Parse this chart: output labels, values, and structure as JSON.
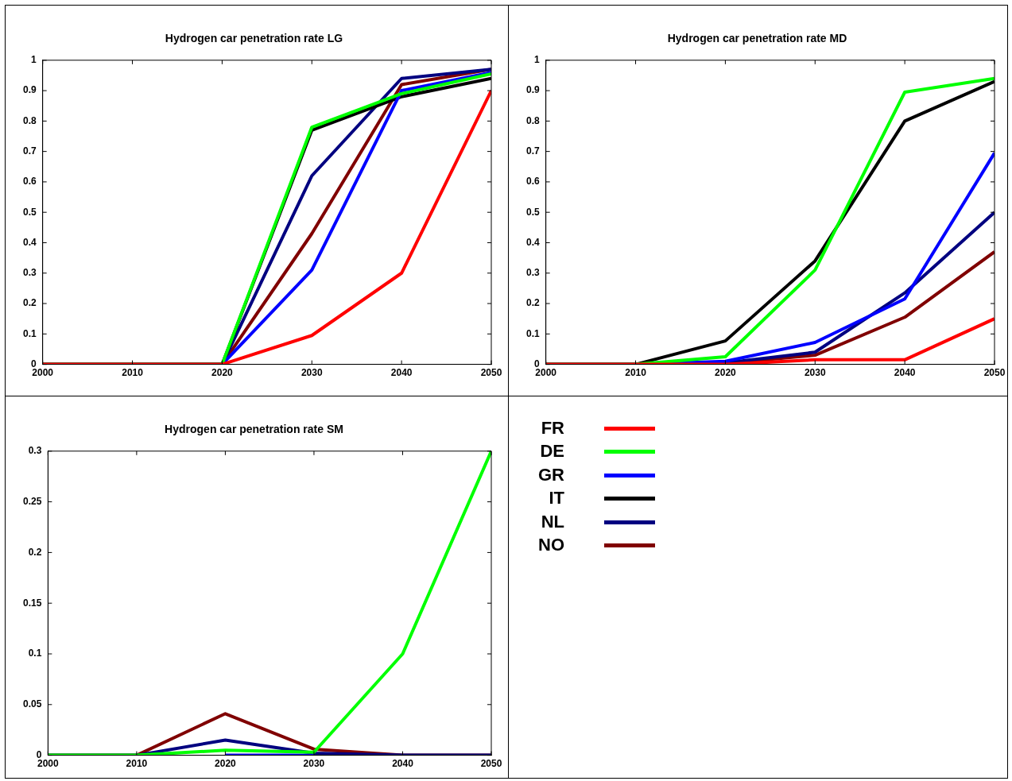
{
  "chart_data": [
    {
      "type": "line",
      "title": "Hydrogen car penetration rate LG",
      "x": [
        2000,
        2010,
        2020,
        2030,
        2040,
        2050
      ],
      "xlim": [
        2000,
        2050
      ],
      "xticks": [
        2000,
        2010,
        2020,
        2030,
        2040,
        2050
      ],
      "ylim": [
        0,
        1
      ],
      "yticks": [
        0,
        0.1,
        0.2,
        0.3,
        0.4,
        0.5,
        0.6,
        0.7,
        0.8,
        0.9,
        1
      ],
      "grid": false,
      "legend": "right",
      "series": [
        {
          "name": "FR",
          "color": "#ff0000",
          "values": [
            0,
            0,
            0,
            0.095,
            0.3,
            0.9
          ]
        },
        {
          "name": "DE",
          "color": "#00ff00",
          "values": [
            0,
            0,
            0,
            0.78,
            0.89,
            0.955
          ]
        },
        {
          "name": "GR",
          "color": "#0000ff",
          "values": [
            0,
            0,
            0,
            0.31,
            0.9,
            0.96
          ]
        },
        {
          "name": "IT",
          "color": "#000000",
          "values": [
            0,
            0,
            0,
            0.77,
            0.88,
            0.94
          ]
        },
        {
          "name": "NL",
          "color": "#000080",
          "values": [
            0,
            0,
            0,
            0.62,
            0.94,
            0.97
          ]
        },
        {
          "name": "NO",
          "color": "#800000",
          "values": [
            0,
            0,
            0,
            0.43,
            0.92,
            0.97
          ]
        }
      ]
    },
    {
      "type": "line",
      "title": "Hydrogen car penetration rate MD",
      "x": [
        2000,
        2010,
        2020,
        2030,
        2040,
        2050
      ],
      "xlim": [
        2000,
        2050
      ],
      "xticks": [
        2000,
        2010,
        2020,
        2030,
        2040,
        2050
      ],
      "ylim": [
        0,
        1
      ],
      "yticks": [
        0,
        0.1,
        0.2,
        0.3,
        0.4,
        0.5,
        0.6,
        0.7,
        0.8,
        0.9,
        1
      ],
      "grid": false,
      "series": [
        {
          "color": "#ff0000",
          "values": [
            0,
            0,
            0,
            0.015,
            0.015,
            0.15
          ]
        },
        {
          "color": "#00ff00",
          "values": [
            0,
            0,
            0.025,
            0.31,
            0.895,
            0.94
          ]
        },
        {
          "color": "#0000ff",
          "values": [
            0,
            0,
            0.01,
            0.072,
            0.215,
            0.695
          ]
        },
        {
          "color": "#000000",
          "values": [
            0,
            0,
            0.077,
            0.34,
            0.8,
            0.93
          ]
        },
        {
          "color": "#000080",
          "values": [
            0,
            0,
            0.005,
            0.04,
            0.235,
            0.5
          ]
        },
        {
          "color": "#800000",
          "values": [
            0,
            0,
            0.003,
            0.03,
            0.155,
            0.37
          ]
        }
      ]
    },
    {
      "type": "line",
      "title": "Hydrogen car penetration rate SM",
      "x": [
        2000,
        2010,
        2020,
        2030,
        2040,
        2050
      ],
      "xlim": [
        2000,
        2050
      ],
      "xticks": [
        2000,
        2010,
        2020,
        2030,
        2040,
        2050
      ],
      "ylim": [
        0,
        0.3
      ],
      "yticks": [
        0,
        0.05,
        0.1,
        0.15,
        0.2,
        0.25,
        0.3
      ],
      "grid": false,
      "series": [
        {
          "color": "#00ff00",
          "values": [
            0,
            0,
            0.005,
            0.003,
            0.1,
            0.3
          ]
        },
        {
          "color": "#0000ff",
          "values": [
            null,
            null,
            0,
            0,
            null,
            null
          ]
        },
        {
          "color": "#000080",
          "values": [
            0,
            0,
            0.015,
            0.002,
            0,
            0
          ]
        },
        {
          "color": "#800000",
          "values": [
            0,
            0,
            0.041,
            0.006,
            0,
            0
          ]
        }
      ]
    }
  ]
}
